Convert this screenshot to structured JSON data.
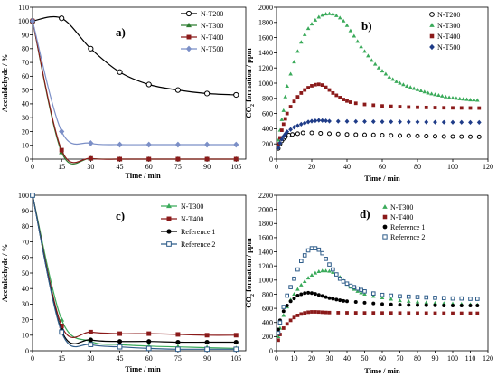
{
  "chart_data": [
    {
      "id": "a",
      "type": "line",
      "panel_label": "a)",
      "xlabel": "Time / min",
      "ylabel": "Acetaldehyde / %",
      "xlim": [
        0,
        110
      ],
      "ylim": [
        0,
        110
      ],
      "xticks": [
        0,
        15,
        30,
        45,
        60,
        75,
        90,
        105
      ],
      "yticks": [
        0,
        10,
        20,
        30,
        40,
        50,
        60,
        70,
        80,
        90,
        100,
        110
      ],
      "grid": false,
      "legend": "top-right",
      "smooth": true,
      "series": [
        {
          "name": "N-T200",
          "color": "#000000",
          "marker": "circle-open",
          "x": [
            0,
            15,
            30,
            45,
            60,
            75,
            90,
            105
          ],
          "y": [
            100,
            102,
            80,
            63,
            54,
            50,
            47.5,
            46.5
          ]
        },
        {
          "name": "N-T300",
          "color": "#2e7d32",
          "marker": "triangle",
          "x": [
            0,
            15,
            30,
            45,
            60,
            75,
            90,
            105
          ],
          "y": [
            100,
            5,
            0.5,
            0,
            0,
            0,
            0,
            0
          ]
        },
        {
          "name": "N-T400",
          "color": "#8b1a1a",
          "marker": "square",
          "x": [
            0,
            15,
            30,
            45,
            60,
            75,
            90,
            105
          ],
          "y": [
            100,
            6.5,
            0.5,
            0,
            0,
            0,
            0,
            0
          ]
        },
        {
          "name": "N-T500",
          "color": "#7b8fc7",
          "marker": "diamond",
          "x": [
            0,
            15,
            30,
            45,
            60,
            75,
            90,
            105
          ],
          "y": [
            100,
            20,
            11.5,
            10.5,
            10.5,
            10.5,
            10.5,
            10.5
          ]
        }
      ]
    },
    {
      "id": "b",
      "type": "scatter",
      "panel_label": "b)",
      "xlabel": "Time / min",
      "ylabel": "CO2 formation / ppm",
      "xlim": [
        0,
        120
      ],
      "ylim": [
        0,
        2000
      ],
      "xticks": [
        0,
        20,
        40,
        60,
        80,
        100,
        120
      ],
      "yticks": [
        0,
        200,
        400,
        600,
        800,
        1000,
        1200,
        1400,
        1600,
        1800,
        2000
      ],
      "grid": false,
      "legend": "top-right",
      "series": [
        {
          "name": "N-T200",
          "color": "#000000",
          "marker": "circle-open",
          "x": [
            1,
            2,
            3,
            4,
            5,
            7,
            9,
            12,
            15,
            20,
            25,
            30,
            35,
            40,
            45,
            50,
            55,
            60,
            65,
            70,
            75,
            80,
            85,
            90,
            95,
            100,
            105,
            110,
            115
          ],
          "y": [
            140,
            200,
            240,
            270,
            290,
            315,
            325,
            335,
            345,
            345,
            340,
            335,
            330,
            325,
            322,
            320,
            318,
            315,
            312,
            310,
            308,
            305,
            303,
            300,
            298,
            297,
            296,
            295,
            293
          ]
        },
        {
          "name": "N-T300",
          "color": "#3aaa5a",
          "marker": "triangle",
          "x": [
            1,
            2,
            3,
            4,
            5,
            6,
            8,
            10,
            12,
            14,
            16,
            18,
            20,
            22,
            24,
            26,
            28,
            30,
            32,
            34,
            36,
            38,
            40,
            42,
            44,
            46,
            48,
            50,
            52,
            54,
            56,
            58,
            60,
            62,
            64,
            66,
            68,
            70,
            72,
            74,
            76,
            78,
            80,
            82,
            84,
            86,
            88,
            90,
            92,
            94,
            96,
            98,
            100,
            102,
            104,
            106,
            108,
            110,
            112,
            114
          ],
          "y": [
            250,
            380,
            520,
            640,
            820,
            960,
            1120,
            1280,
            1420,
            1540,
            1640,
            1720,
            1780,
            1830,
            1870,
            1895,
            1910,
            1915,
            1910,
            1890,
            1860,
            1820,
            1760,
            1690,
            1620,
            1550,
            1480,
            1420,
            1360,
            1300,
            1250,
            1200,
            1160,
            1120,
            1080,
            1050,
            1020,
            1000,
            980,
            960,
            945,
            930,
            915,
            900,
            885,
            870,
            860,
            850,
            840,
            830,
            820,
            810,
            805,
            800,
            795,
            790,
            785,
            780,
            780,
            775
          ]
        },
        {
          "name": "N-T400",
          "color": "#8b1a1a",
          "marker": "square",
          "x": [
            1,
            2,
            3,
            4,
            5,
            6,
            8,
            10,
            12,
            14,
            16,
            18,
            20,
            22,
            24,
            26,
            28,
            30,
            32,
            34,
            36,
            38,
            40,
            42,
            45,
            50,
            55,
            60,
            65,
            70,
            75,
            80,
            85,
            90,
            95,
            100,
            105,
            110,
            115
          ],
          "y": [
            200,
            280,
            380,
            460,
            530,
            600,
            690,
            760,
            820,
            870,
            910,
            940,
            965,
            980,
            985,
            975,
            945,
            910,
            870,
            840,
            810,
            785,
            765,
            750,
            735,
            720,
            710,
            700,
            695,
            690,
            685,
            682,
            680,
            678,
            676,
            675,
            674,
            673,
            672
          ]
        },
        {
          "name": "N-T500",
          "color": "#1f3c88",
          "marker": "diamond",
          "x": [
            1,
            2,
            3,
            4,
            5,
            6,
            8,
            10,
            12,
            14,
            16,
            18,
            20,
            22,
            24,
            26,
            28,
            30,
            35,
            40,
            45,
            50,
            55,
            60,
            65,
            70,
            75,
            80,
            85,
            90,
            95,
            100,
            105,
            110,
            115
          ],
          "y": [
            150,
            210,
            260,
            300,
            330,
            360,
            390,
            420,
            440,
            460,
            475,
            490,
            500,
            505,
            510,
            508,
            505,
            500,
            498,
            497,
            496,
            495,
            494,
            493,
            492,
            491,
            490,
            489,
            488,
            487,
            486,
            485,
            485,
            484,
            484
          ]
        }
      ]
    },
    {
      "id": "c",
      "type": "line",
      "panel_label": "c)",
      "xlabel": "Time / min",
      "ylabel": "Acetaldehyde / %",
      "xlim": [
        0,
        110
      ],
      "ylim": [
        0,
        100
      ],
      "xticks": [
        0,
        15,
        30,
        45,
        60,
        75,
        90,
        105
      ],
      "yticks": [
        0,
        10,
        20,
        30,
        40,
        50,
        60,
        70,
        80,
        90,
        100
      ],
      "grid": false,
      "legend": "top-right",
      "smooth": true,
      "series": [
        {
          "name": "N-T300",
          "color": "#3aaa5a",
          "marker": "triangle",
          "x": [
            0,
            15,
            30,
            45,
            60,
            75,
            90,
            105
          ],
          "y": [
            100,
            20,
            6,
            4,
            3,
            2.5,
            2,
            1.5
          ]
        },
        {
          "name": "N-T400",
          "color": "#8b1a1a",
          "marker": "square",
          "x": [
            0,
            15,
            30,
            45,
            60,
            75,
            90,
            105
          ],
          "y": [
            100,
            16,
            12,
            11,
            11,
            10.5,
            10,
            10
          ]
        },
        {
          "name": "Reference 1",
          "color": "#000000",
          "marker": "circle",
          "x": [
            0,
            15,
            30,
            45,
            60,
            75,
            90,
            105
          ],
          "y": [
            100,
            13,
            7,
            6,
            6,
            5.5,
            5.5,
            5.5
          ]
        },
        {
          "name": "Reference 2",
          "color": "#2f5d8a",
          "marker": "square-open",
          "x": [
            0,
            15,
            30,
            45,
            60,
            75,
            90,
            105
          ],
          "y": [
            100,
            12,
            4,
            2.5,
            1.5,
            1,
            1,
            1
          ]
        }
      ]
    },
    {
      "id": "d",
      "type": "scatter",
      "panel_label": "d)",
      "xlabel": "Time / min",
      "ylabel": "CO2 formation / ppm",
      "xlim": [
        0,
        120
      ],
      "ylim": [
        0,
        2200
      ],
      "xticks": [
        0,
        10,
        20,
        30,
        40,
        50,
        60,
        70,
        80,
        90,
        100,
        110,
        120
      ],
      "yticks": [
        0,
        200,
        400,
        600,
        800,
        1000,
        1200,
        1400,
        1600,
        1800,
        2000,
        2200
      ],
      "grid": false,
      "legend": "top-right",
      "series": [
        {
          "name": "N-T300",
          "color": "#3aaa5a",
          "marker": "triangle",
          "x": [
            1,
            2,
            4,
            6,
            8,
            10,
            12,
            14,
            16,
            18,
            20,
            22,
            24,
            26,
            28,
            30,
            32,
            34,
            36,
            38,
            40,
            42,
            44,
            46,
            48,
            50,
            55,
            60,
            65,
            70,
            75,
            80,
            85,
            90,
            95,
            100,
            105,
            110,
            114
          ],
          "y": [
            200,
            320,
            500,
            620,
            720,
            800,
            870,
            930,
            980,
            1030,
            1070,
            1100,
            1120,
            1130,
            1130,
            1125,
            1110,
            1080,
            1040,
            990,
            940,
            900,
            870,
            840,
            820,
            800,
            770,
            750,
            730,
            710,
            700,
            690,
            680,
            675,
            670,
            665,
            660,
            655,
            650
          ]
        },
        {
          "name": "N-T400",
          "color": "#8b1a1a",
          "marker": "square",
          "x": [
            1,
            2,
            4,
            6,
            8,
            10,
            12,
            14,
            16,
            18,
            20,
            22,
            24,
            26,
            28,
            30,
            35,
            40,
            45,
            50,
            55,
            60,
            65,
            70,
            75,
            80,
            85,
            90,
            95,
            100,
            105,
            110,
            114
          ],
          "y": [
            150,
            230,
            320,
            380,
            430,
            470,
            500,
            520,
            535,
            545,
            550,
            550,
            548,
            545,
            542,
            540,
            538,
            537,
            536,
            535,
            535,
            534,
            534,
            533,
            533,
            532,
            532,
            531,
            531,
            530,
            530,
            530,
            530
          ]
        },
        {
          "name": "Reference 1",
          "color": "#000000",
          "marker": "circle",
          "x": [
            1,
            2,
            4,
            6,
            8,
            10,
            12,
            14,
            16,
            18,
            20,
            22,
            24,
            26,
            28,
            30,
            32,
            34,
            36,
            38,
            40,
            45,
            50,
            55,
            60,
            65,
            70,
            75,
            80,
            85,
            90,
            95,
            100,
            105,
            110,
            114
          ],
          "y": [
            300,
            430,
            560,
            640,
            700,
            740,
            780,
            800,
            815,
            820,
            815,
            805,
            790,
            775,
            760,
            745,
            735,
            725,
            715,
            705,
            700,
            690,
            680,
            670,
            660,
            655,
            650,
            648,
            646,
            644,
            642,
            640,
            640,
            640,
            640,
            640
          ]
        },
        {
          "name": "Reference 2",
          "color": "#2f5d8a",
          "marker": "square-open",
          "x": [
            1,
            2,
            4,
            6,
            8,
            10,
            12,
            14,
            16,
            18,
            20,
            22,
            24,
            26,
            28,
            30,
            32,
            34,
            36,
            38,
            40,
            42,
            44,
            46,
            48,
            50,
            55,
            60,
            65,
            70,
            75,
            80,
            85,
            90,
            95,
            100,
            105,
            110,
            114
          ],
          "y": [
            250,
            400,
            620,
            780,
            900,
            1020,
            1150,
            1270,
            1350,
            1420,
            1450,
            1450,
            1430,
            1380,
            1300,
            1220,
            1150,
            1080,
            1020,
            980,
            950,
            920,
            900,
            880,
            860,
            840,
            810,
            790,
            780,
            770,
            765,
            760,
            755,
            750,
            745,
            740,
            740,
            735,
            735
          ]
        }
      ]
    }
  ]
}
